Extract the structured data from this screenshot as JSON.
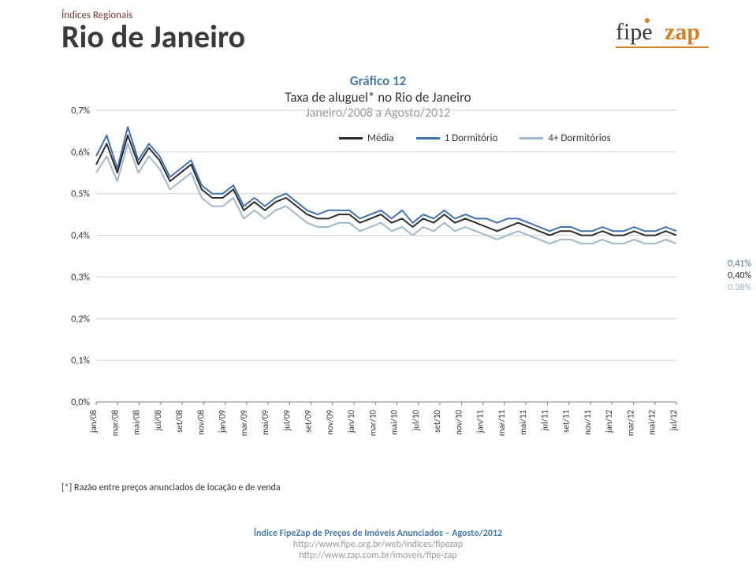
{
  "header": {
    "overline": "Índices Regionais",
    "city": "Rio de Janeiro"
  },
  "logo": {
    "text_fipe": "fipe",
    "text_zap": "zap",
    "fipe_color": "#3a3a3a",
    "zap_color": "#d98026"
  },
  "chart": {
    "number_label": "Gráfico 12",
    "title": "Taxa de aluguel* no Rio de Janeiro",
    "subtitle": "Janeiro/2008 a Agosto/2012",
    "background_color": "#ffffff",
    "grid_color": "#cfcfcf",
    "axis_color": "#808080",
    "tick_font_size": 12,
    "tick_color": "#333333",
    "ylim": [
      0.0,
      0.7
    ],
    "ytick_step": 0.1,
    "y_ticks": [
      "0,0%",
      "0,1%",
      "0,2%",
      "0,3%",
      "0,4%",
      "0,5%",
      "0,6%",
      "0,7%"
    ],
    "x_categories": [
      "jan/08",
      "mar/08",
      "mai/08",
      "jul/08",
      "set/08",
      "nov/08",
      "jan/09",
      "mar/09",
      "mai/09",
      "jul/09",
      "set/09",
      "nov/09",
      "jan/10",
      "mar/10",
      "mai/10",
      "jul/10",
      "set/10",
      "nov/10",
      "jan/11",
      "mar/11",
      "mai/11",
      "jul/11",
      "set/11",
      "nov/11",
      "jan/12",
      "mar/12",
      "mai/12",
      "jul/12"
    ],
    "line_width": 2,
    "series": [
      {
        "name": "Média",
        "color": "#2c2c2c",
        "end_label": "0,40%",
        "values": [
          0.57,
          0.62,
          0.55,
          0.64,
          0.57,
          0.61,
          0.58,
          0.53,
          0.55,
          0.57,
          0.51,
          0.49,
          0.49,
          0.51,
          0.46,
          0.48,
          0.46,
          0.48,
          0.49,
          0.47,
          0.45,
          0.44,
          0.44,
          0.45,
          0.45,
          0.43,
          0.44,
          0.45,
          0.43,
          0.44,
          0.42,
          0.44,
          0.43,
          0.45,
          0.43,
          0.44,
          0.43,
          0.42,
          0.41,
          0.42,
          0.43,
          0.42,
          0.41,
          0.4,
          0.41,
          0.41,
          0.4,
          0.4,
          0.41,
          0.4,
          0.4,
          0.41,
          0.4,
          0.4,
          0.41,
          0.4
        ]
      },
      {
        "name": "1 Dormitório",
        "color": "#3d73b0",
        "end_label": "0,41%",
        "values": [
          0.59,
          0.64,
          0.56,
          0.66,
          0.58,
          0.62,
          0.59,
          0.54,
          0.56,
          0.58,
          0.52,
          0.5,
          0.5,
          0.52,
          0.47,
          0.49,
          0.47,
          0.49,
          0.5,
          0.48,
          0.46,
          0.45,
          0.46,
          0.46,
          0.46,
          0.44,
          0.45,
          0.46,
          0.44,
          0.46,
          0.43,
          0.45,
          0.44,
          0.46,
          0.44,
          0.45,
          0.44,
          0.44,
          0.43,
          0.44,
          0.44,
          0.43,
          0.42,
          0.41,
          0.42,
          0.42,
          0.41,
          0.41,
          0.42,
          0.41,
          0.41,
          0.42,
          0.41,
          0.41,
          0.42,
          0.41
        ]
      },
      {
        "name": "4+ Dormitórios",
        "color": "#9fb8cf",
        "end_label": "0,38%",
        "values": [
          0.55,
          0.59,
          0.53,
          0.62,
          0.55,
          0.59,
          0.56,
          0.51,
          0.53,
          0.55,
          0.49,
          0.47,
          0.47,
          0.49,
          0.44,
          0.46,
          0.44,
          0.46,
          0.47,
          0.45,
          0.43,
          0.42,
          0.42,
          0.43,
          0.43,
          0.41,
          0.42,
          0.43,
          0.41,
          0.42,
          0.4,
          0.42,
          0.41,
          0.43,
          0.41,
          0.42,
          0.41,
          0.4,
          0.39,
          0.4,
          0.41,
          0.4,
          0.39,
          0.38,
          0.39,
          0.39,
          0.38,
          0.38,
          0.39,
          0.38,
          0.38,
          0.39,
          0.38,
          0.38,
          0.39,
          0.38
        ]
      }
    ]
  },
  "legend": {
    "items": [
      "Média",
      "1 Dormitório",
      "4+ Dormitórios"
    ]
  },
  "end_labels": {
    "l1": "0,41%",
    "l2": "0,40%",
    "l3": "0,38%",
    "c1": "#3d73b0",
    "c2": "#2c2c2c",
    "c3": "#9fb8cf"
  },
  "footnote": "[*] Razão entre preços anunciados de locação e de venda",
  "footer": {
    "line1": "Índice FipeZap de Preços de Imóveis Anunciados – Agosto/2012",
    "line2": "http://www.fipe.org.br/web/indices/fipezap",
    "line3": "http://www.zap.com.br/imoveis/fipe-zap"
  }
}
